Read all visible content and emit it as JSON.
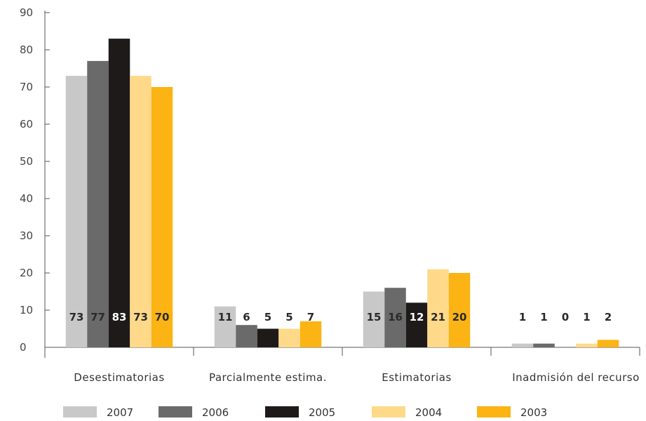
{
  "chart_data": {
    "type": "bar",
    "title": "",
    "xlabel": "",
    "ylabel": "",
    "ylim": [
      0,
      90
    ],
    "yticks": [
      0,
      10,
      20,
      30,
      40,
      50,
      60,
      70,
      80,
      90
    ],
    "categories": [
      "Desestimatorias",
      "Parcialmente estima.",
      "Estimatorias",
      "Inadmisión del recurso"
    ],
    "legend_position": "bottom",
    "series": [
      {
        "name": "2007",
        "color": "#c8c8c8",
        "label_color": "#2a2a2a",
        "values": [
          73,
          11,
          15,
          1
        ]
      },
      {
        "name": "2006",
        "color": "#6a6a6a",
        "label_color": "#2a2a2a",
        "values": [
          77,
          6,
          16,
          1
        ]
      },
      {
        "name": "2005",
        "color": "#1e1a1a",
        "label_color": "#ffffff",
        "values": [
          83,
          5,
          12,
          0
        ]
      },
      {
        "name": "2004",
        "color": "#ffd98a",
        "label_color": "#2a2a2a",
        "values": [
          73,
          5,
          21,
          1
        ]
      },
      {
        "name": "2003",
        "color": "#fbb414",
        "label_color": "#2a2a2a",
        "values": [
          70,
          7,
          20,
          2
        ]
      }
    ]
  }
}
